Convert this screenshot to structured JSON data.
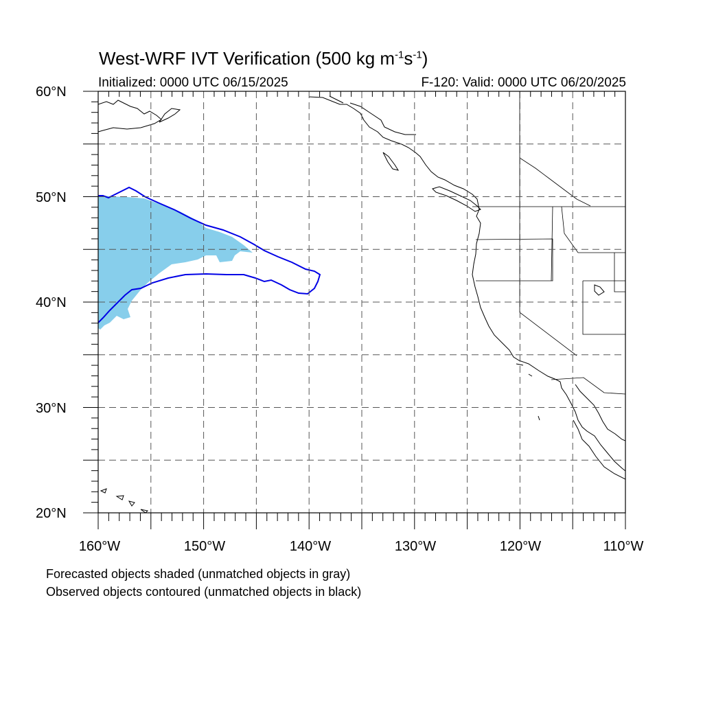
{
  "title": {
    "main": "West-WRF IVT Verification (500 kg m",
    "sup1": "-1",
    "mid": "s",
    "sup2": "-1",
    "end": ")"
  },
  "initialized": "Initialized: 0000 UTC 06/15/2025",
  "valid": "F-120: Valid: 0000 UTC 06/20/2025",
  "lat_labels": [
    "60°N",
    "50°N",
    "40°N",
    "30°N",
    "20°N"
  ],
  "lon_labels": [
    "160°W",
    "150°W",
    "140°W",
    "130°W",
    "120°W",
    "110°W"
  ],
  "notes": [
    "Forecasted objects shaded (unmatched objects in gray)",
    "Observed objects contoured (unmatched objects in black)"
  ],
  "colors": {
    "forecast_fill": "#87ceeb",
    "observed_contour": "#0000e6",
    "grid": "#555555",
    "coast": "#000000"
  },
  "map_extent": {
    "lon": [
      -160,
      -110
    ],
    "lat": [
      20,
      60
    ]
  }
}
